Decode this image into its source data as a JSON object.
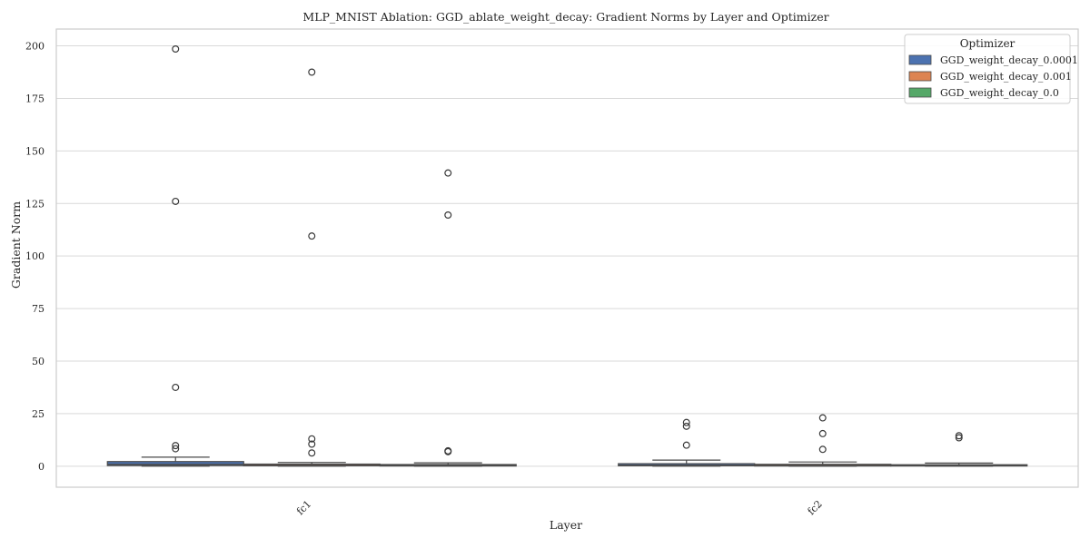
{
  "chart_data": {
    "type": "box",
    "title": "MLP_MNIST Ablation: GGD_ablate_weight_decay: Gradient Norms by Layer and Optimizer",
    "xlabel": "Layer",
    "ylabel": "Gradient Norm",
    "categories": [
      "fc1",
      "fc2"
    ],
    "ylim": [
      -10,
      208
    ],
    "yticks": [
      0,
      25,
      50,
      75,
      100,
      125,
      150,
      175,
      200
    ],
    "grid": true,
    "legend": {
      "title": "Optimizer",
      "placement": "top-right"
    },
    "series": [
      {
        "name": "GGD_weight_decay_0.0001",
        "color": "#4c72b0",
        "boxes": [
          {
            "category": "fc1",
            "q1": 0.3,
            "median": 0.9,
            "q3": 2.2,
            "whisker_low": 0.0,
            "whisker_high": 4.3,
            "outliers": [
              198.5,
              126.0,
              37.5,
              9.8,
              8.3
            ]
          },
          {
            "category": "fc2",
            "q1": 0.2,
            "median": 0.5,
            "q3": 1.2,
            "whisker_low": 0.0,
            "whisker_high": 2.9,
            "outliers": [
              20.8,
              19.0,
              10.0
            ]
          }
        ]
      },
      {
        "name": "GGD_weight_decay_0.001",
        "color": "#dd8452",
        "boxes": [
          {
            "category": "fc1",
            "q1": 0.2,
            "median": 0.5,
            "q3": 1.0,
            "whisker_low": 0.0,
            "whisker_high": 1.8,
            "outliers": [
              187.5,
              109.5,
              13.0,
              10.5,
              6.3
            ]
          },
          {
            "category": "fc2",
            "q1": 0.1,
            "median": 0.4,
            "q3": 0.9,
            "whisker_low": 0.0,
            "whisker_high": 2.0,
            "outliers": [
              23.0,
              15.5,
              8.0
            ]
          }
        ]
      },
      {
        "name": "GGD_weight_decay_0.0",
        "color": "#55a868",
        "boxes": [
          {
            "category": "fc1",
            "q1": 0.1,
            "median": 0.3,
            "q3": 0.8,
            "whisker_low": 0.0,
            "whisker_high": 1.6,
            "outliers": [
              139.5,
              119.5,
              7.3,
              6.9
            ]
          },
          {
            "category": "fc2",
            "q1": 0.1,
            "median": 0.3,
            "q3": 0.7,
            "whisker_low": 0.0,
            "whisker_high": 1.5,
            "outliers": [
              14.5,
              13.5
            ]
          }
        ]
      }
    ]
  }
}
